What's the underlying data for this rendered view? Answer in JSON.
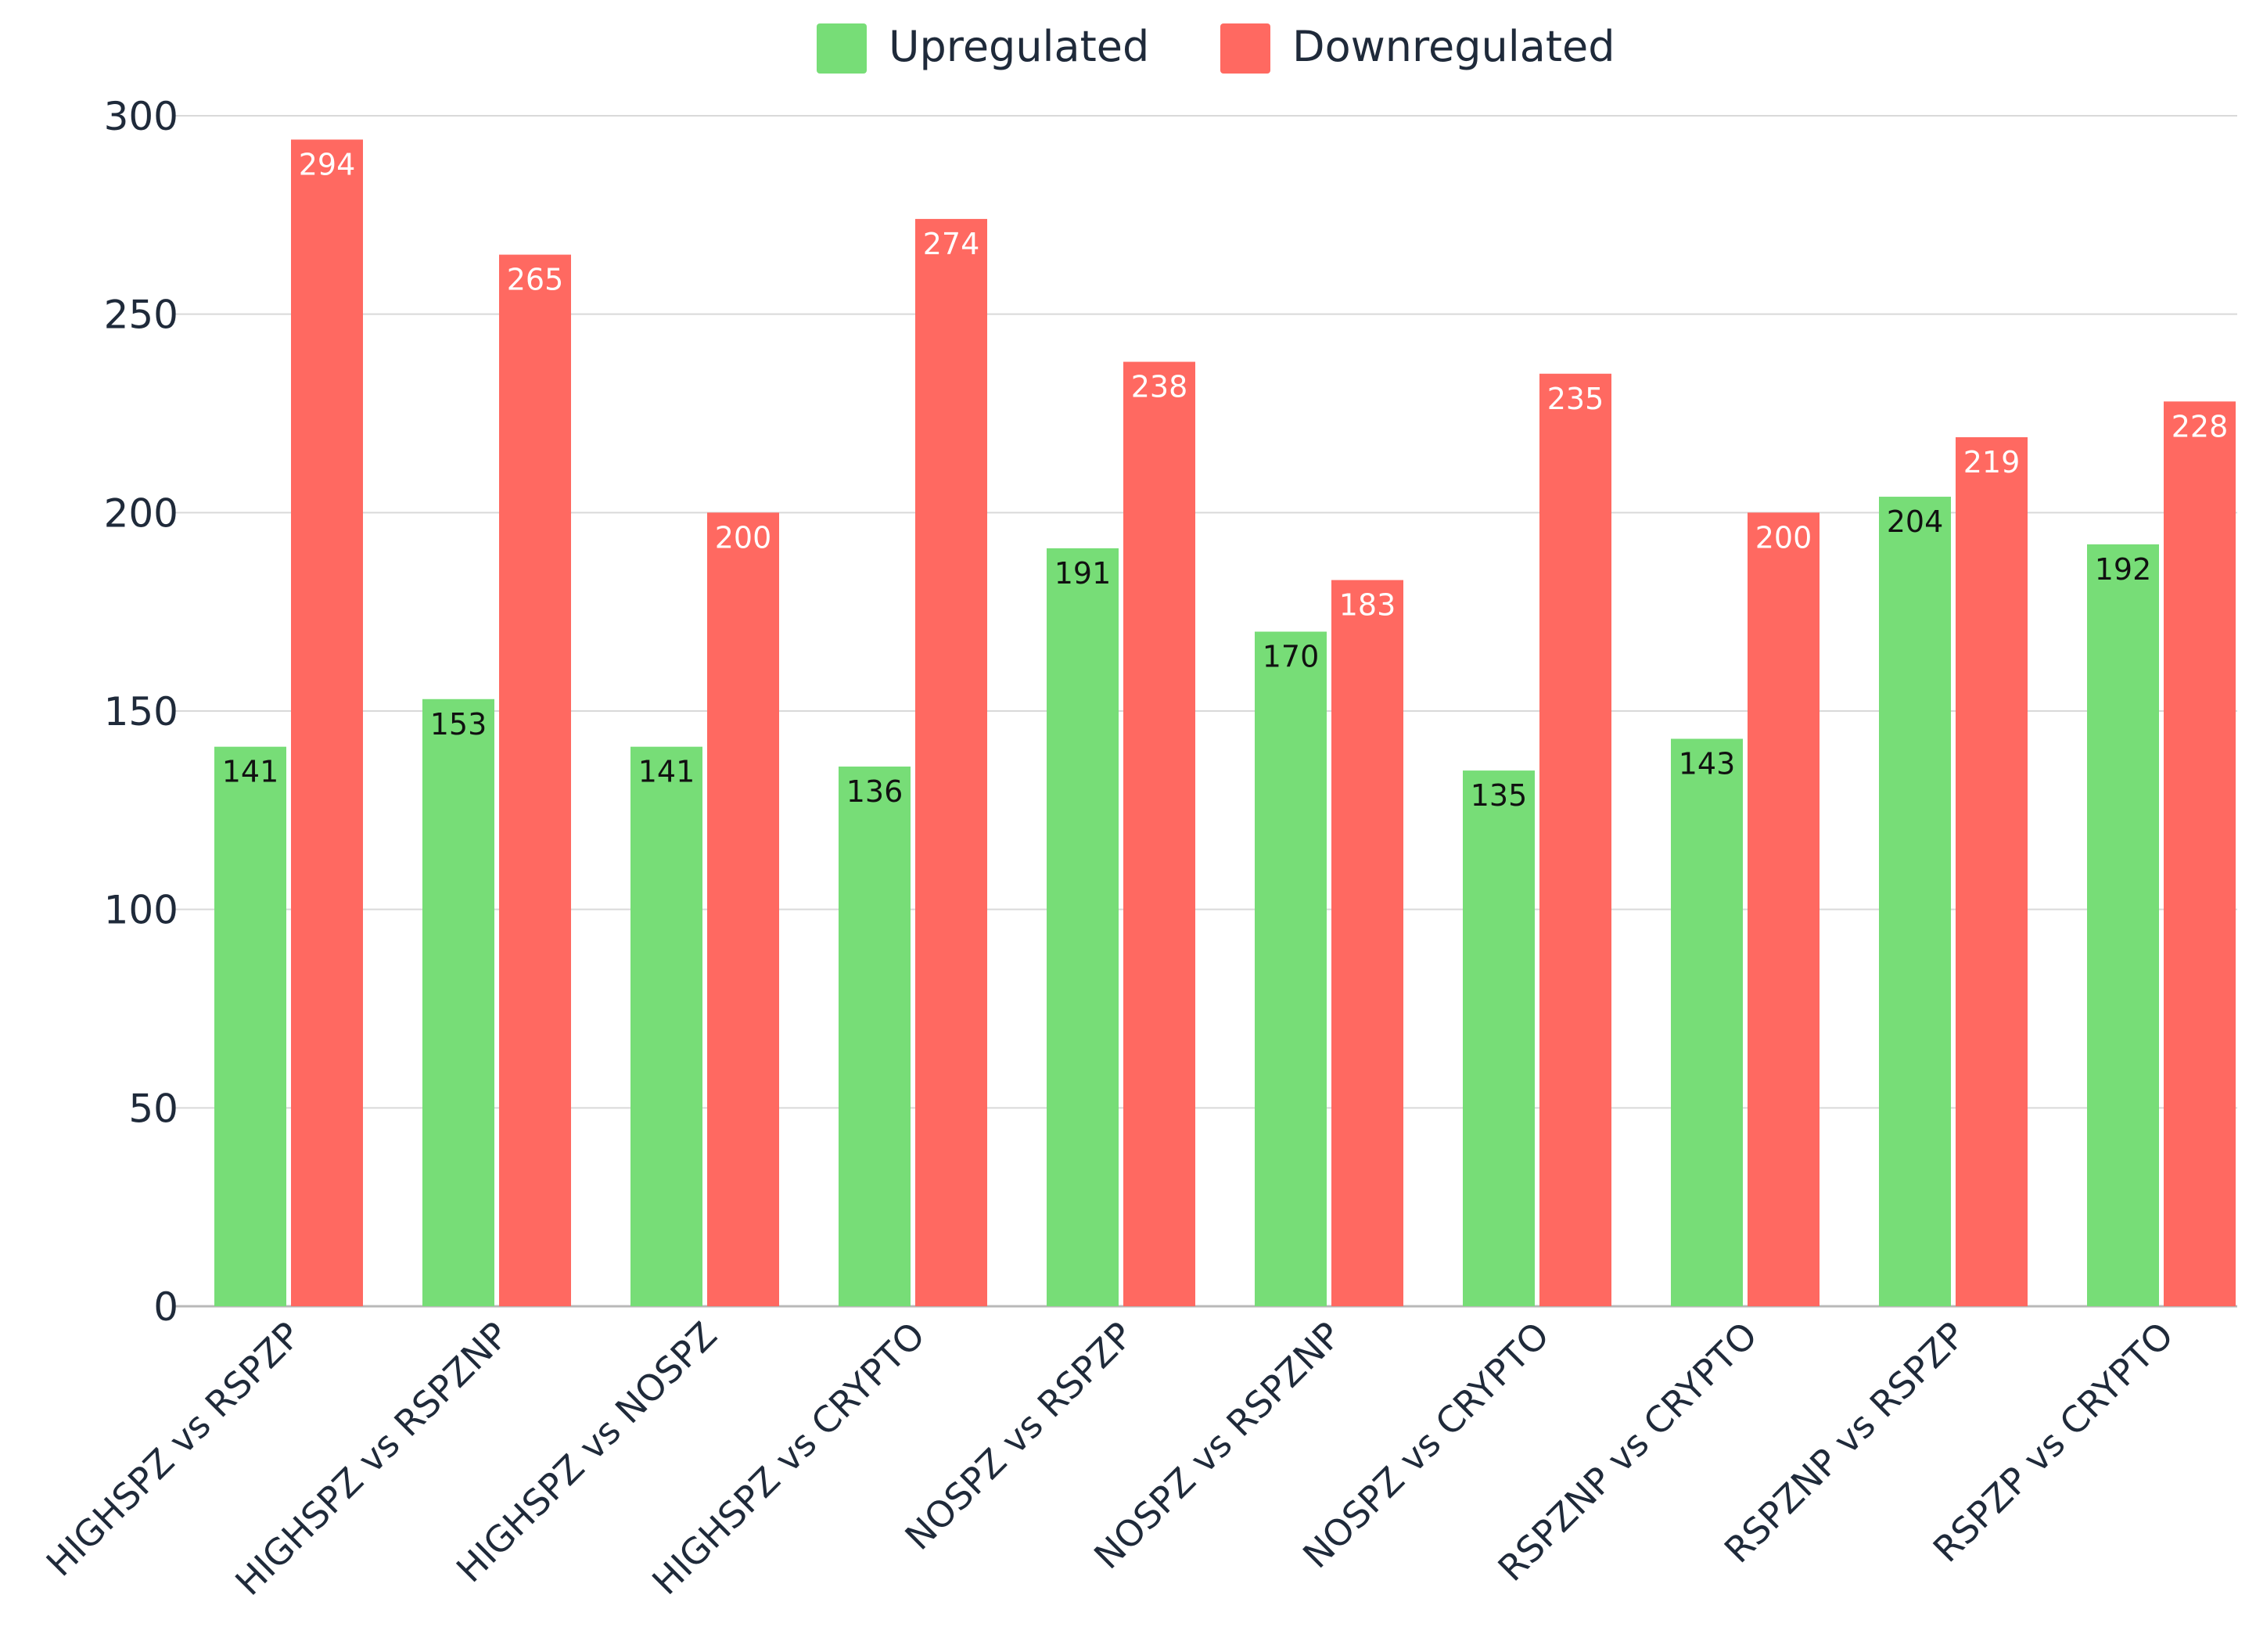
{
  "chart_data": {
    "type": "bar",
    "title": "",
    "xlabel": "",
    "ylabel": "",
    "ylim": [
      0,
      300
    ],
    "yticks": [
      0,
      50,
      100,
      150,
      200,
      250,
      300
    ],
    "grid": true,
    "legend_position": "top-center",
    "categories": [
      "HIGHSPZ vs RSPZP",
      "HIGHSPZ vs RSPZNP",
      "HIGHSPZ vs NOSPZ",
      "HIGHSPZ vs CRYPTO",
      "NOSPZ vs RSPZP",
      "NOSPZ vs RSPZNP",
      "NOSPZ vs CRYPTO",
      "RSPZNP vs CRYPTO",
      "RSPZNP vs RSPZP",
      "RSPZP vs CRYPTO"
    ],
    "series": [
      {
        "name": "Upregulated",
        "color": "#77dd77",
        "label_color": "#111111",
        "values": [
          141,
          153,
          141,
          136,
          191,
          170,
          135,
          143,
          204,
          192
        ]
      },
      {
        "name": "Downregulated",
        "color": "#ff6961",
        "label_color": "#ffffff",
        "values": [
          294,
          265,
          200,
          274,
          238,
          183,
          235,
          200,
          219,
          228
        ]
      }
    ]
  }
}
